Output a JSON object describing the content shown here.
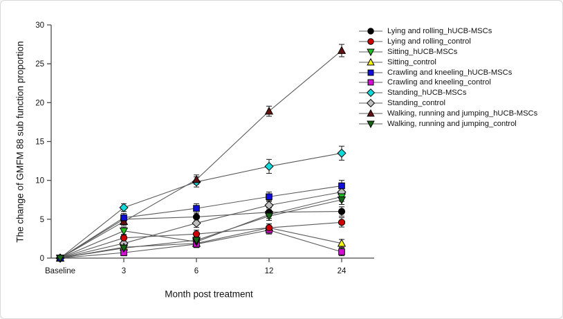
{
  "chart_data": {
    "type": "line",
    "title": "",
    "xlabel": "Month post treatment",
    "ylabel": "The change of GMFM 88 sub function proportion",
    "categories": [
      "Baseline",
      "3",
      "6",
      "12",
      "24"
    ],
    "yticks": [
      0,
      5,
      10,
      15,
      20,
      25,
      30
    ],
    "ylim": [
      0,
      30
    ],
    "grid": false,
    "legend_position": "right",
    "line_color": "#5a5a5a",
    "errorbar_color": "#1a1a1a",
    "axis_color": "#4a4a4a",
    "series": [
      {
        "name": "Lying and rolling_hUCB-MSCs",
        "marker": "circle",
        "color": "#000000",
        "values": [
          0,
          5.0,
          5.3,
          5.9,
          6.0
        ],
        "err": [
          0,
          0.5,
          0.5,
          0.55,
          0.6
        ]
      },
      {
        "name": "Lying and rolling_control",
        "marker": "circle",
        "color": "#cc0000",
        "values": [
          0,
          2.6,
          3.1,
          3.9,
          4.6
        ],
        "err": [
          0,
          0.45,
          0.5,
          0.5,
          0.6
        ]
      },
      {
        "name": "Sitting_hUCB-MSCs",
        "marker": "triangle-down",
        "color": "#1fbf1f",
        "values": [
          0,
          3.5,
          2.1,
          5.6,
          7.9
        ],
        "err": [
          0,
          0.5,
          0.45,
          0.5,
          0.6
        ]
      },
      {
        "name": "Sitting_control",
        "marker": "triangle-up",
        "color": "#f5f511",
        "values": [
          0,
          1.4,
          1.9,
          3.9,
          1.9
        ],
        "err": [
          0,
          0.4,
          0.4,
          0.5,
          0.5
        ]
      },
      {
        "name": "Crawling and kneeling_hUCB-MSCs",
        "marker": "square",
        "color": "#0f0fd9",
        "values": [
          0,
          5.2,
          6.4,
          7.9,
          9.3
        ],
        "err": [
          0,
          0.55,
          0.6,
          0.6,
          0.7
        ]
      },
      {
        "name": "Crawling and kneeling_control",
        "marker": "square",
        "color": "#d40fd4",
        "values": [
          0,
          0.7,
          1.8,
          3.6,
          0.8
        ],
        "err": [
          0,
          0.4,
          0.45,
          0.5,
          0.5
        ]
      },
      {
        "name": "Standing_hUCB-MSCs",
        "marker": "diamond",
        "color": "#0fd9d9",
        "values": [
          0,
          6.5,
          9.8,
          11.8,
          13.5
        ],
        "err": [
          0,
          0.5,
          0.65,
          0.9,
          0.9
        ]
      },
      {
        "name": "Standing_control",
        "marker": "diamond",
        "color": "#bfbfbf",
        "values": [
          0,
          1.9,
          4.5,
          6.8,
          8.5
        ],
        "err": [
          0,
          0.45,
          0.55,
          0.6,
          0.65
        ]
      },
      {
        "name": "Walking, running and jumping_hUCB-MSCs",
        "marker": "triangle-up",
        "color": "#661111",
        "values": [
          0,
          4.7,
          10.1,
          18.9,
          26.7
        ],
        "err": [
          0,
          0.5,
          0.6,
          0.65,
          0.8
        ]
      },
      {
        "name": "Walking, running and jumping_control",
        "marker": "triangle-down",
        "color": "#156615",
        "values": [
          0,
          1.3,
          2.3,
          5.4,
          7.5
        ],
        "err": [
          0,
          0.4,
          0.45,
          0.55,
          0.6
        ]
      }
    ]
  }
}
